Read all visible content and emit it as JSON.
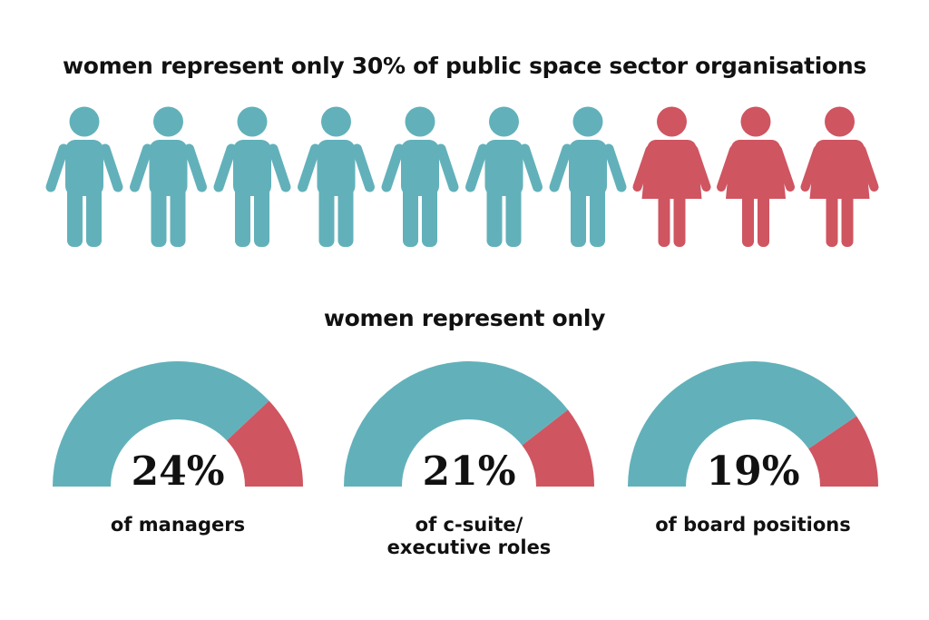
{
  "title": "women represent only 30% of public space sector organisations",
  "subtitle": "women represent only",
  "colors": {
    "men": "#62b1ba",
    "women": "#cf5561"
  },
  "chart_data": [
    {
      "type": "pictogram",
      "title": "women represent only 30% of public space sector organisations",
      "total": 10,
      "series": [
        {
          "name": "men",
          "count": 7,
          "icon": "male-person-icon"
        },
        {
          "name": "women",
          "count": 3,
          "icon": "female-person-icon"
        }
      ],
      "women_percent": 30
    },
    {
      "type": "gauge",
      "title": "women represent only",
      "gauges": [
        {
          "value": 24,
          "value_label": "24%",
          "label": [
            "of managers"
          ]
        },
        {
          "value": 21,
          "value_label": "21%",
          "label": [
            "of c-suite/",
            "executive roles"
          ]
        },
        {
          "value": 19,
          "value_label": "19%",
          "label": [
            "of board positions"
          ]
        }
      ]
    }
  ]
}
